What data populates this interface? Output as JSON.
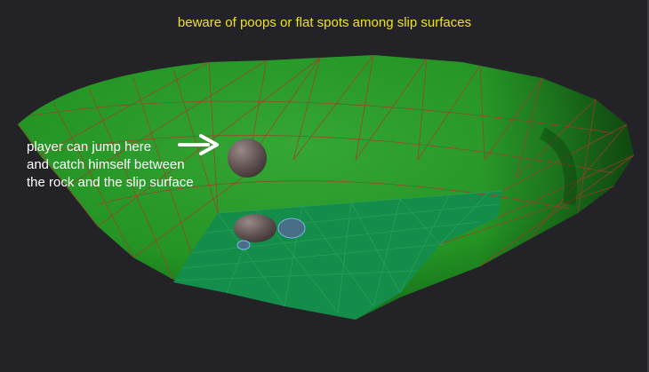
{
  "viewport": {
    "title": "beware of poops or flat spots among slip surfaces",
    "annotation": {
      "lines": [
        "player can jump here",
        "and catch himself between",
        "the rock and the slip surface"
      ],
      "pointer_icon": "right-arrow-icon"
    }
  },
  "colors": {
    "background": "#232227",
    "title_text": "#f0e21a",
    "annotation_text": "#ffffff",
    "slope_surface": "#2a9a2a",
    "floor_surface": "#138a4a",
    "mesh_edges": "#a53a2a",
    "rock": "#6e5a5a",
    "rock_highlight_blue": "#3a7aa6"
  }
}
